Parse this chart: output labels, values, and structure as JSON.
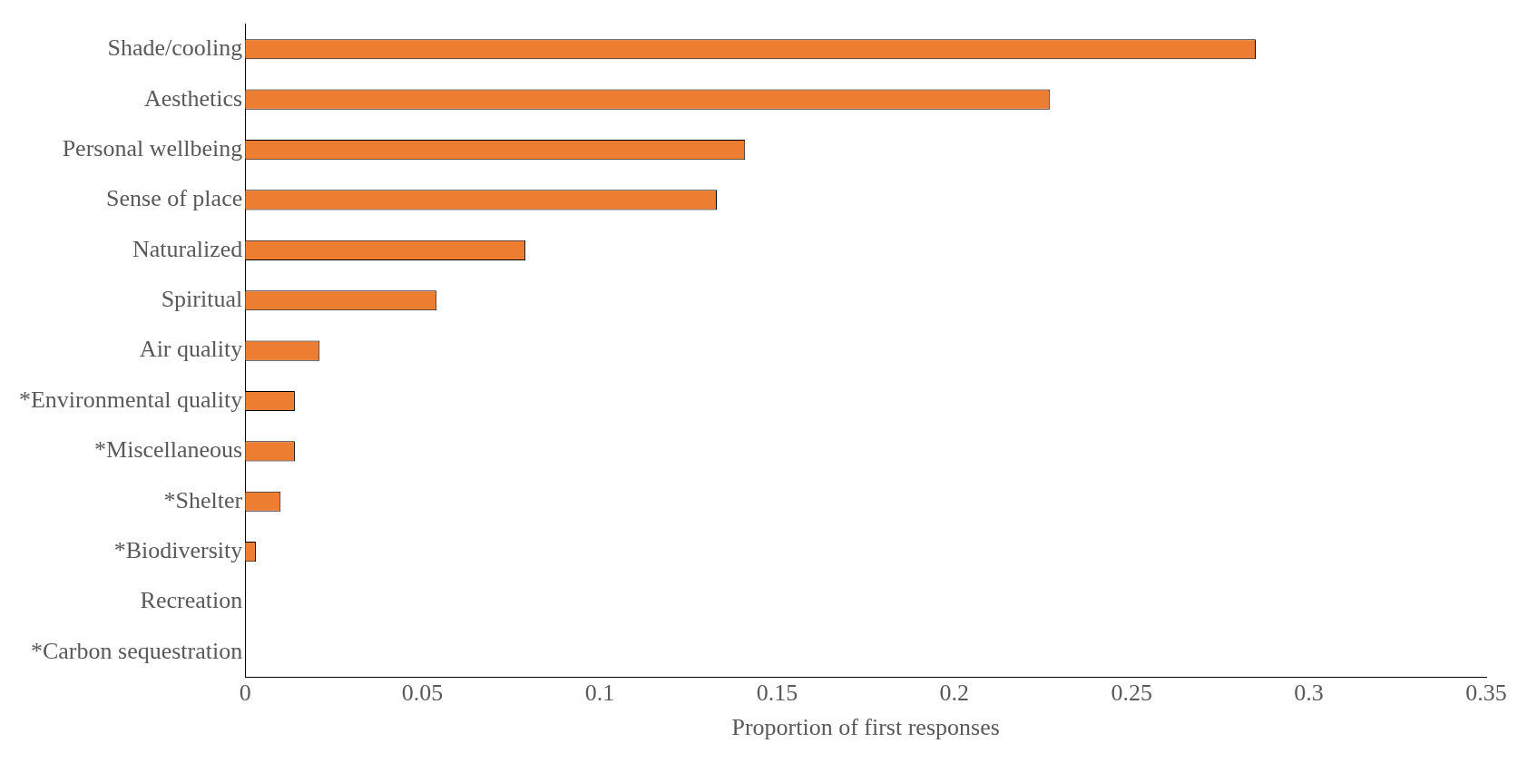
{
  "chart_data": {
    "type": "bar",
    "orientation": "horizontal",
    "xlabel": "Proportion of first responses",
    "categories": [
      "Shade/cooling",
      "Aesthetics",
      "Personal wellbeing",
      "Sense of place",
      "Naturalized",
      "Spiritual",
      "Air quality",
      "*Environmental quality",
      "*Miscellaneous",
      "*Shelter",
      "*Biodiversity",
      "Recreation",
      "*Carbon sequestration"
    ],
    "values": [
      0.285,
      0.227,
      0.141,
      0.133,
      0.079,
      0.054,
      0.021,
      0.014,
      0.014,
      0.01,
      0.003,
      0,
      0
    ],
    "color": "#ed7d31",
    "xlim": [
      0,
      0.35
    ],
    "xticks": [
      0,
      {
        "value": 0.05,
        "label": "0.05"
      },
      {
        "value": 0.1,
        "label": "0.1"
      },
      {
        "value": 0.15,
        "label": "0.15"
      },
      {
        "value": 0.2,
        "label": "0.2"
      },
      {
        "value": 0.25,
        "label": "0.25"
      },
      {
        "value": 0.3,
        "label": "0.3"
      },
      {
        "value": 0.35,
        "label": "0.35"
      }
    ],
    "grid": false,
    "legend": false
  }
}
